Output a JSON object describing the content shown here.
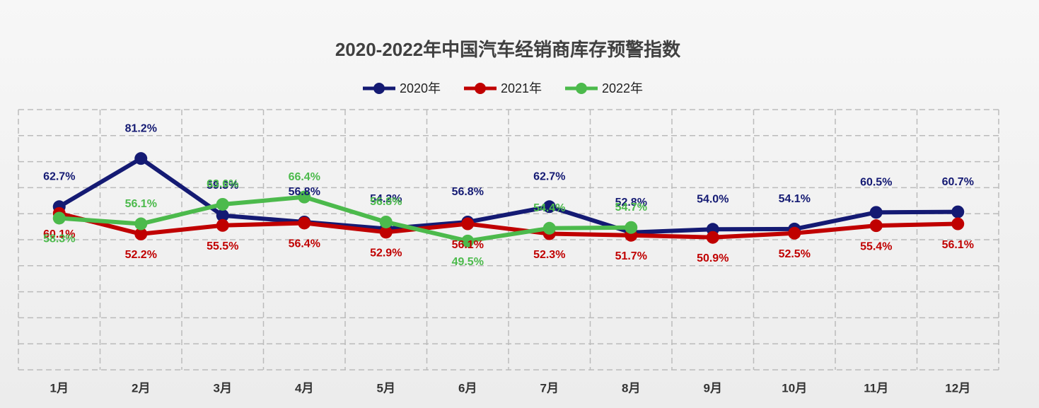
{
  "chart_data": {
    "type": "line",
    "title": "2020-2022年中国汽车经销商库存预警指数",
    "categories": [
      "1月",
      "2月",
      "3月",
      "4月",
      "5月",
      "6月",
      "7月",
      "8月",
      "9月",
      "10月",
      "11月",
      "12月"
    ],
    "series": [
      {
        "name": "2020年",
        "color": "#141a73",
        "values": [
          62.7,
          81.2,
          59.3,
          56.8,
          54.2,
          56.8,
          62.7,
          52.8,
          54.0,
          54.1,
          60.5,
          60.7
        ],
        "value_labels": [
          "62.7%",
          "81.2%",
          "59.3%",
          "56.8%",
          "54.2%",
          "56.8%",
          "62.7%",
          "52.8%",
          "54.0%",
          "54.1%",
          "60.5%",
          "60.7%"
        ]
      },
      {
        "name": "2021年",
        "color": "#c00000",
        "values": [
          60.1,
          52.2,
          55.5,
          56.4,
          52.9,
          56.1,
          52.3,
          51.7,
          50.9,
          52.5,
          55.4,
          56.1
        ],
        "value_labels": [
          "60.1%",
          "52.2%",
          "55.5%",
          "56.4%",
          "52.9%",
          "56.1%",
          "52.3%",
          "51.7%",
          "50.9%",
          "52.5%",
          "55.4%",
          "56.1%"
        ]
      },
      {
        "name": "2022年",
        "color": "#4cba4c",
        "values": [
          58.3,
          56.1,
          63.6,
          66.4,
          56.8,
          49.5,
          54.4,
          54.7,
          null,
          null,
          null,
          null
        ],
        "value_labels": [
          "58.3%",
          "56.1%",
          "63.6%",
          "66.4%",
          "56.8%",
          "49.5%",
          "54.4%",
          "54.7%",
          null,
          null,
          null,
          null
        ]
      }
    ],
    "ylim": [
      0,
      100
    ],
    "yticks": [
      0,
      10,
      20,
      30,
      40,
      50,
      60,
      70,
      80,
      90,
      100
    ],
    "grid": true,
    "legend": "top"
  }
}
